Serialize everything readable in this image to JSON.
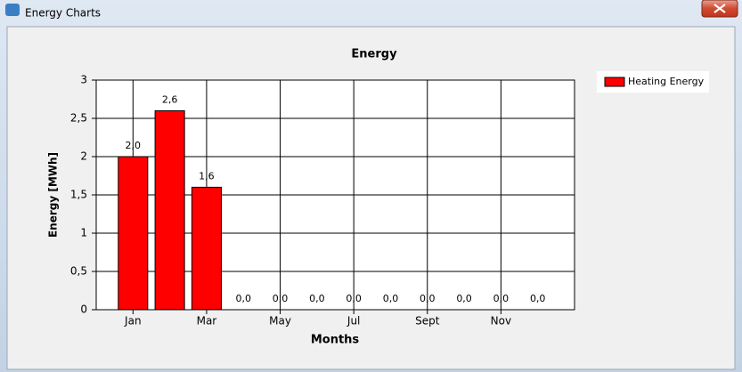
{
  "window": {
    "title": "Energy Charts"
  },
  "chart_data": {
    "type": "bar",
    "title": "Energy",
    "x_label": "Months",
    "y_label": "Energy [MWh]",
    "categories": [
      "Jan",
      null,
      "Mar",
      null,
      "May",
      null,
      "Jul",
      null,
      "Sept",
      null,
      "Nov",
      null
    ],
    "series": [
      {
        "name": "Heating Energy",
        "color": "#ff0000",
        "values": [
          2.0,
          2.6,
          1.6,
          0,
          0,
          0,
          0,
          0,
          0,
          0,
          0,
          0
        ],
        "value_labels": [
          "2,0",
          "2,6",
          "1,6",
          "0,0",
          "0,0",
          "0,0",
          "0,0",
          "0,0",
          "0,0",
          "0,0",
          "0,0",
          "0,0"
        ]
      }
    ],
    "ylim": [
      0,
      3
    ],
    "yticks": [
      0,
      {
        "value": 0.5,
        "label": "0,5"
      },
      1,
      {
        "value": 1.5,
        "label": "1,5"
      },
      2,
      {
        "value": 2.5,
        "label": "2,5"
      },
      3
    ],
    "grid": true,
    "legend": "right"
  }
}
